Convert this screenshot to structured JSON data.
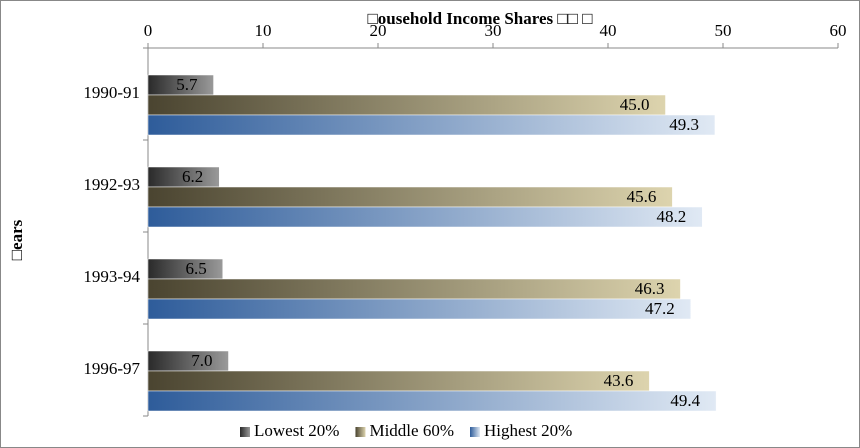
{
  "chart_data": {
    "type": "bar",
    "orientation": "horizontal",
    "title": "□ousehold Income Shares □□ □",
    "y_label": "□ears",
    "categories": [
      "1990-91",
      "1992-93",
      "1993-94",
      "1996-97"
    ],
    "series": [
      {
        "name": "Lowest 20%",
        "color": "#3a3a3a",
        "values": [
          5.7,
          6.2,
          6.5,
          7.0
        ],
        "value_labels": [
          "5.7",
          "6.2",
          "6.5",
          "7.0"
        ]
      },
      {
        "name": "Middle 60%",
        "color": "#6b6340",
        "values": [
          45.0,
          45.6,
          46.3,
          43.6
        ],
        "value_labels": [
          "45.0",
          "45.6",
          "46.3",
          "43.6"
        ]
      },
      {
        "name": "Highest 20%",
        "color": "#3d6aa8",
        "values": [
          49.3,
          48.2,
          47.2,
          49.4
        ],
        "value_labels": [
          "49.3",
          "48.2",
          "47.2",
          "49.4"
        ]
      }
    ],
    "xlim": [
      0,
      60
    ],
    "xticks": [
      0,
      10,
      20,
      30,
      40,
      50,
      60
    ],
    "grid": false,
    "legend": "bottom"
  }
}
